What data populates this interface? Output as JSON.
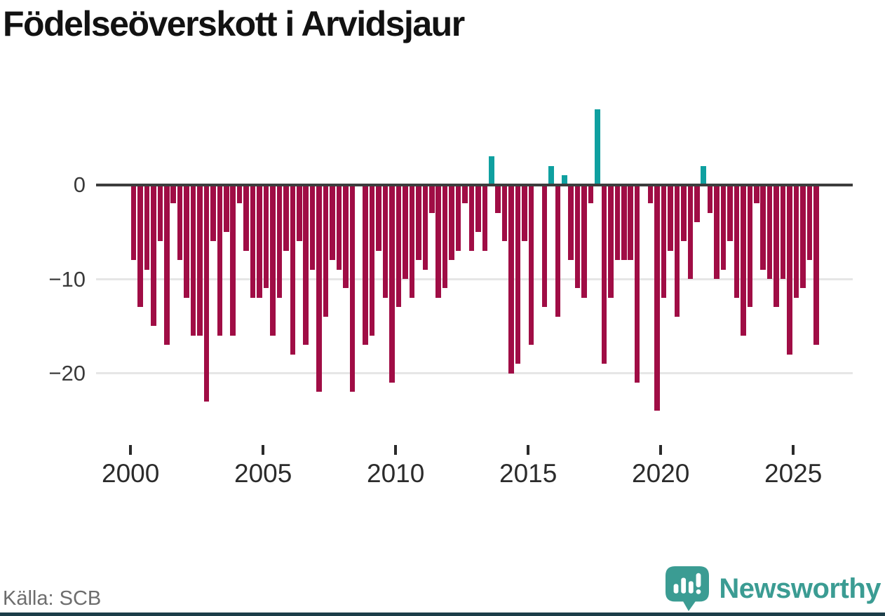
{
  "title": "Födelseöverskott i Arvidsjaur",
  "footer": {
    "source": "Källa: SCB",
    "brand": "Newsworthy"
  },
  "colors": {
    "negative_bar": "#A00D45",
    "positive_bar": "#0FA0A0",
    "zero_axis": "#3D3D3D",
    "gridline": "#E6E6E6",
    "y_tick_label": "#3A3A3A",
    "x_tick_label": "#2B2B2B",
    "title_text": "#121212",
    "source_text": "#6D6D6D",
    "brand_teal": "#3B9C93",
    "bottom_strip": "#1C3D48"
  },
  "chart_data": {
    "type": "bar",
    "title": "Födelseöverskott i Arvidsjaur",
    "xlabel": "",
    "ylabel": "",
    "x_unit": "quarter",
    "grid": "horizontal",
    "legend": "none",
    "ylim": [
      -26,
      9
    ],
    "y_ticks": [
      0,
      -10,
      -20
    ],
    "y_tick_labels": [
      "0",
      "−10",
      "−20"
    ],
    "x_tick_years": [
      2000,
      2005,
      2010,
      2015,
      2020,
      2025
    ],
    "categories": [
      "2000 Q1",
      "2000 Q2",
      "2000 Q3",
      "2000 Q4",
      "2001 Q1",
      "2001 Q2",
      "2001 Q3",
      "2001 Q4",
      "2002 Q1",
      "2002 Q2",
      "2002 Q3",
      "2002 Q4",
      "2003 Q1",
      "2003 Q2",
      "2003 Q3",
      "2003 Q4",
      "2004 Q1",
      "2004 Q2",
      "2004 Q3",
      "2004 Q4",
      "2005 Q1",
      "2005 Q2",
      "2005 Q3",
      "2005 Q4",
      "2006 Q1",
      "2006 Q2",
      "2006 Q3",
      "2006 Q4",
      "2007 Q1",
      "2007 Q2",
      "2007 Q3",
      "2007 Q4",
      "2008 Q1",
      "2008 Q2",
      "2008 Q3",
      "2008 Q4",
      "2009 Q1",
      "2009 Q2",
      "2009 Q3",
      "2009 Q4",
      "2010 Q1",
      "2010 Q2",
      "2010 Q3",
      "2010 Q4",
      "2011 Q1",
      "2011 Q2",
      "2011 Q3",
      "2011 Q4",
      "2012 Q1",
      "2012 Q2",
      "2012 Q3",
      "2012 Q4",
      "2013 Q1",
      "2013 Q2",
      "2013 Q3",
      "2013 Q4",
      "2014 Q1",
      "2014 Q2",
      "2014 Q3",
      "2014 Q4",
      "2015 Q1",
      "2015 Q2",
      "2015 Q3",
      "2015 Q4",
      "2016 Q1",
      "2016 Q2",
      "2016 Q3",
      "2016 Q4",
      "2017 Q1",
      "2017 Q2",
      "2017 Q3",
      "2017 Q4",
      "2018 Q1",
      "2018 Q2",
      "2018 Q3",
      "2018 Q4",
      "2019 Q1",
      "2019 Q2",
      "2019 Q3",
      "2019 Q4",
      "2020 Q1",
      "2020 Q2",
      "2020 Q3",
      "2020 Q4",
      "2021 Q1",
      "2021 Q2",
      "2021 Q3",
      "2021 Q4",
      "2022 Q1",
      "2022 Q2",
      "2022 Q3",
      "2022 Q4",
      "2023 Q1",
      "2023 Q2",
      "2023 Q3",
      "2023 Q4",
      "2024 Q1",
      "2024 Q2",
      "2024 Q3",
      "2024 Q4",
      "2025 Q1",
      "2025 Q2",
      "2025 Q3",
      "2025 Q4"
    ],
    "values": [
      -8,
      -13,
      -9,
      -15,
      -6,
      -17,
      -2,
      -8,
      -12,
      -16,
      -16,
      -23,
      -6,
      -16,
      -5,
      -16,
      -2,
      -7,
      -12,
      -12,
      -11,
      -16,
      -12,
      -7,
      -18,
      -6,
      -17,
      -9,
      -22,
      -14,
      -8,
      -9,
      -11,
      -22,
      0,
      -17,
      -16,
      -7,
      -12,
      -21,
      -13,
      -10,
      -12,
      -8,
      -9,
      -3,
      -12,
      -11,
      -8,
      -7,
      -2,
      -7,
      -5,
      -7,
      3,
      -3,
      -6,
      -20,
      -19,
      -6,
      -17,
      0,
      -13,
      2,
      -14,
      1,
      -8,
      -11,
      -12,
      -2,
      8,
      -19,
      -12,
      -8,
      -8,
      -8,
      -21,
      0,
      -2,
      -24,
      -12,
      -7,
      -14,
      -6,
      -10,
      -4,
      2,
      -3,
      -10,
      -9,
      -6,
      -12,
      -16,
      -13,
      -2,
      -9,
      -10,
      -13,
      -10,
      -18,
      -12,
      -11,
      -8,
      -17
    ]
  }
}
